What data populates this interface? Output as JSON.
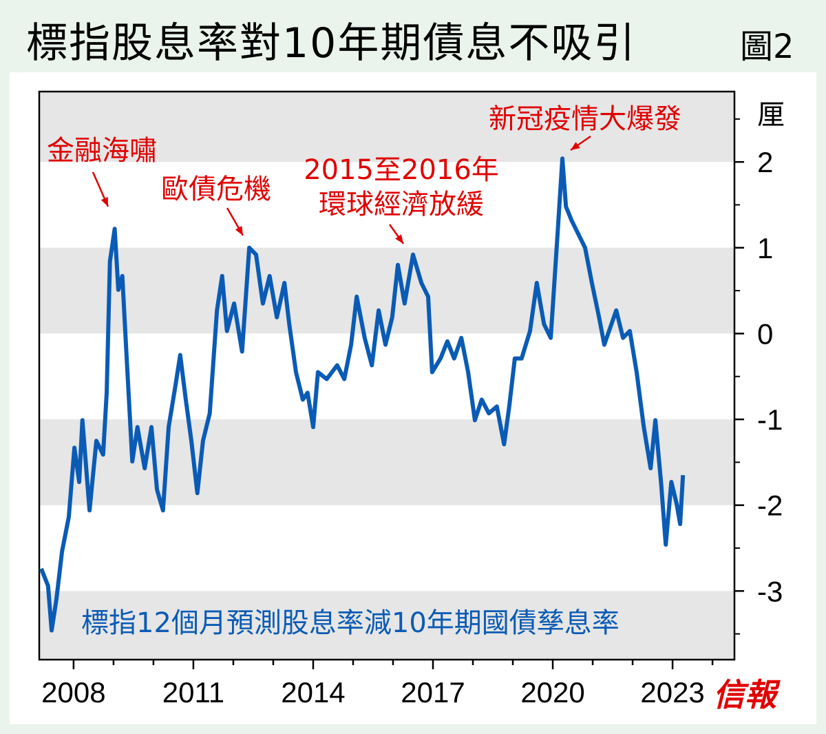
{
  "title": "標指股息率對10年期債息不吸引",
  "figure_label": "圖2",
  "logo": "信報",
  "colors": {
    "line": "#0a5bb5",
    "band": "#e6e6e6",
    "annotation": "#e00000",
    "series_label": "#0a5bb5",
    "background": "#eaf4ec",
    "logo": "#e00000"
  },
  "chart_data": {
    "type": "line",
    "title": "標指股息率對10年期債息不吸引",
    "ylabel": "厘",
    "xlim": [
      2007.14,
      2024.55
    ],
    "ylim": [
      -3.8,
      2.82
    ],
    "x_ticks": [
      2008,
      2011,
      2014,
      2017,
      2020,
      2023
    ],
    "x_tick_labels": [
      "2008",
      "2011",
      "2014",
      "2017",
      "2020",
      "2023"
    ],
    "y_ticks": [
      2,
      1,
      0,
      -1,
      -2,
      -3
    ],
    "y_tick_labels": [
      "2",
      "1",
      "0",
      "-1",
      "-2",
      "-3"
    ],
    "y_axis_position": "right",
    "grid": "alternating horizontal bands",
    "series": [
      {
        "name": "標指12個月預測股息率減10年期國債孳息率",
        "x": [
          2007.19,
          2007.36,
          2007.45,
          2007.57,
          2007.71,
          2007.88,
          2008.02,
          2008.14,
          2008.22,
          2008.4,
          2008.57,
          2008.74,
          2008.83,
          2008.91,
          2009.03,
          2009.12,
          2009.22,
          2009.34,
          2009.47,
          2009.6,
          2009.78,
          2009.95,
          2010.09,
          2010.24,
          2010.38,
          2010.55,
          2010.67,
          2010.81,
          2010.95,
          2011.1,
          2011.24,
          2011.41,
          2011.59,
          2011.72,
          2011.84,
          2012.02,
          2012.22,
          2012.4,
          2012.57,
          2012.74,
          2012.91,
          2013.09,
          2013.28,
          2013.4,
          2013.57,
          2013.74,
          2013.86,
          2014.0,
          2014.12,
          2014.34,
          2014.6,
          2014.78,
          2014.95,
          2015.09,
          2015.29,
          2015.47,
          2015.64,
          2015.81,
          2015.98,
          2016.12,
          2016.29,
          2016.5,
          2016.71,
          2016.88,
          2016.98,
          2017.19,
          2017.36,
          2017.53,
          2017.71,
          2017.88,
          2018.05,
          2018.22,
          2018.4,
          2018.6,
          2018.78,
          2018.91,
          2019.05,
          2019.22,
          2019.43,
          2019.6,
          2019.78,
          2019.95,
          2020.12,
          2020.24,
          2020.33,
          2020.47,
          2020.64,
          2020.81,
          2020.98,
          2021.16,
          2021.29,
          2021.41,
          2021.59,
          2021.76,
          2021.93,
          2022.1,
          2022.28,
          2022.45,
          2022.57,
          2022.71,
          2022.83,
          2022.97,
          2023.1,
          2023.19,
          2023.26
        ],
        "values": [
          -2.74,
          -2.94,
          -3.46,
          -3.1,
          -2.54,
          -2.14,
          -1.33,
          -1.73,
          -1.01,
          -2.06,
          -1.25,
          -1.41,
          -0.69,
          0.84,
          1.22,
          0.51,
          0.67,
          -0.37,
          -1.49,
          -1.09,
          -1.57,
          -1.09,
          -1.82,
          -2.06,
          -1.09,
          -0.61,
          -0.25,
          -0.77,
          -1.25,
          -1.86,
          -1.25,
          -0.93,
          0.27,
          0.67,
          0.03,
          0.35,
          -0.21,
          1.0,
          0.92,
          0.35,
          0.67,
          0.19,
          0.59,
          0.11,
          -0.45,
          -0.77,
          -0.69,
          -1.09,
          -0.45,
          -0.53,
          -0.37,
          -0.53,
          -0.13,
          0.43,
          -0.05,
          -0.37,
          0.27,
          -0.13,
          0.19,
          0.8,
          0.35,
          0.92,
          0.59,
          0.43,
          -0.45,
          -0.29,
          -0.09,
          -0.29,
          -0.05,
          -0.45,
          -1.01,
          -0.77,
          -0.93,
          -0.85,
          -1.29,
          -0.85,
          -0.29,
          -0.29,
          0.03,
          0.59,
          0.11,
          -0.05,
          1.16,
          2.04,
          1.48,
          1.32,
          1.16,
          1.0,
          0.59,
          0.19,
          -0.13,
          0.03,
          0.27,
          -0.05,
          0.03,
          -0.45,
          -1.09,
          -1.57,
          -1.01,
          -1.73,
          -2.46,
          -1.73,
          -1.98,
          -2.22,
          -1.65
        ]
      }
    ],
    "annotations": [
      {
        "text": "金融海嘯",
        "x": 2009.0,
        "y": 1.22
      },
      {
        "text": "歐債危機",
        "x": 2012.4,
        "y": 1.0
      },
      {
        "text_line1": "2015至2016年",
        "text_line2": "環球經濟放緩",
        "x": 2016.4,
        "y": 0.92
      },
      {
        "text": "新冠疫情大爆發",
        "x": 2020.24,
        "y": 2.04
      }
    ]
  }
}
